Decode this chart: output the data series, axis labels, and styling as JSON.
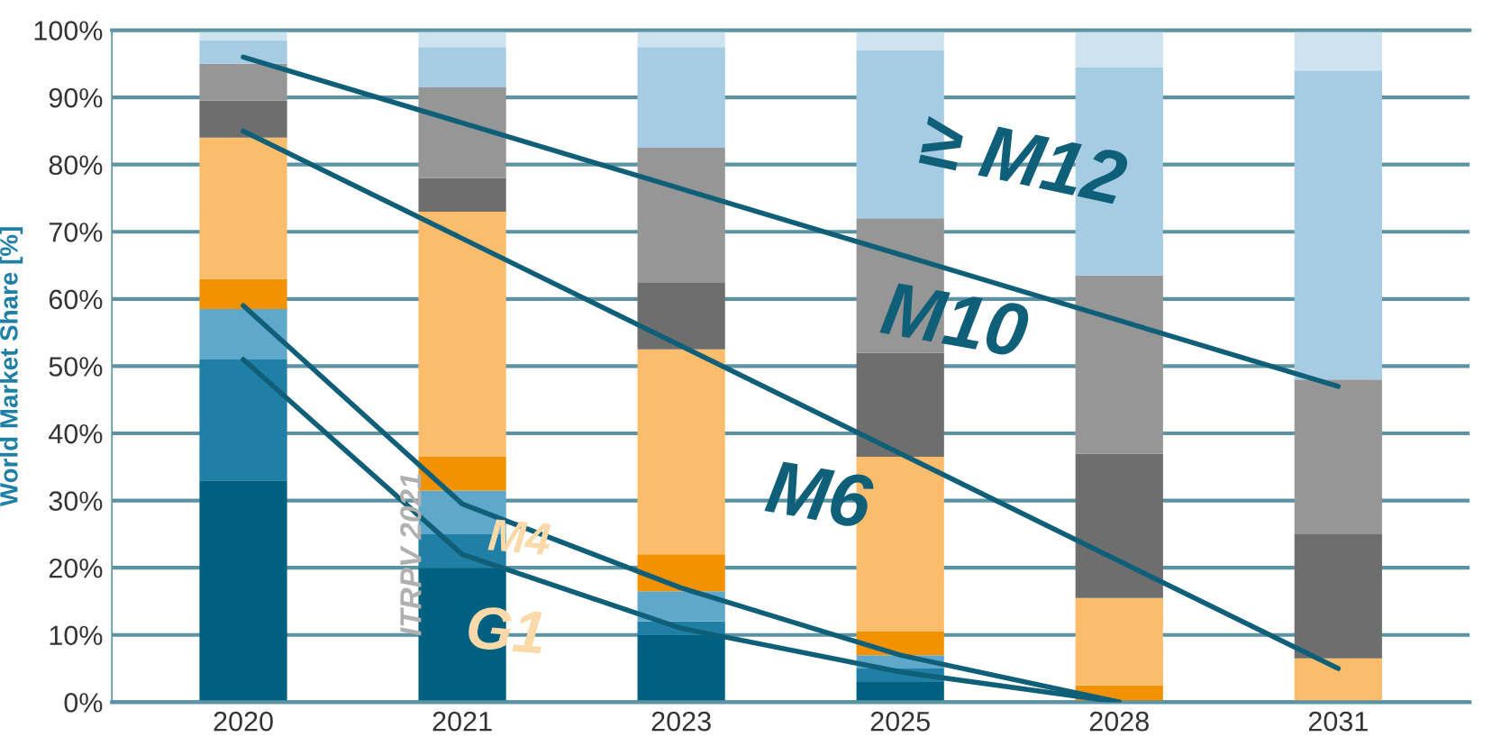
{
  "chart_data": {
    "type": "bar",
    "stacked": true,
    "ylabel": "World Market Share [%]",
    "categories": [
      "2020",
      "2021",
      "2023",
      "2025",
      "2028",
      "2031"
    ],
    "ylim": [
      0,
      100
    ],
    "yticks": [
      {
        "value": 0,
        "label": "0%"
      },
      {
        "value": 10,
        "label": "10%"
      },
      {
        "value": 20,
        "label": "20%"
      },
      {
        "value": 30,
        "label": "30%"
      },
      {
        "value": 40,
        "label": "40%"
      },
      {
        "value": 50,
        "label": "50%"
      },
      {
        "value": 60,
        "label": "60%"
      },
      {
        "value": 70,
        "label": "70%"
      },
      {
        "value": 80,
        "label": "80%"
      },
      {
        "value": 90,
        "label": "90%"
      },
      {
        "value": 100,
        "label": "100%"
      }
    ],
    "grid": "y",
    "legend": false,
    "marker": "none",
    "line_style": "solid",
    "series": [
      {
        "color": "#00607f",
        "values": [
          33,
          20,
          10,
          3,
          0,
          0
        ]
      },
      {
        "color": "#1f7fa5",
        "values": [
          18,
          5,
          2,
          2,
          0,
          0
        ]
      },
      {
        "color": "#5fa8cc",
        "values": [
          7.5,
          6.5,
          4.5,
          2,
          0,
          0
        ]
      },
      {
        "color": "#f39200",
        "values": [
          4.5,
          5,
          5.5,
          3.5,
          2.5,
          0
        ]
      },
      {
        "color": "#fbbd6b",
        "values": [
          21,
          36.5,
          30.5,
          26,
          13,
          6.5
        ]
      },
      {
        "color": "#6e6e6e",
        "values": [
          5.5,
          5,
          10,
          15.5,
          21.5,
          18.5
        ]
      },
      {
        "color": "#969696",
        "values": [
          5.5,
          13.5,
          20,
          20,
          26.5,
          23
        ]
      },
      {
        "color": "#a5cce3",
        "values": [
          3.5,
          6,
          15,
          25,
          31,
          46
        ]
      },
      {
        "color": "#cde3ef",
        "values": [
          1.5,
          2.5,
          2.5,
          3,
          5.5,
          6
        ]
      },
      {
        "type": "line",
        "color": "#0f5f79",
        "values": [
          96,
          null,
          null,
          null,
          null,
          47
        ]
      },
      {
        "type": "line",
        "color": "#0f5f79",
        "values": [
          85,
          null,
          null,
          null,
          null,
          5
        ]
      },
      {
        "type": "line",
        "color": "#0f5f79",
        "values": [
          59,
          29.5,
          17,
          7,
          0,
          null
        ]
      },
      {
        "type": "line",
        "color": "#0f5f79",
        "values": [
          51,
          22,
          11,
          4.5,
          0,
          null
        ]
      }
    ],
    "annotations": [
      "≥ M12",
      "M10",
      "M6",
      "M4",
      "G1",
      "ITRPV 2021"
    ]
  }
}
